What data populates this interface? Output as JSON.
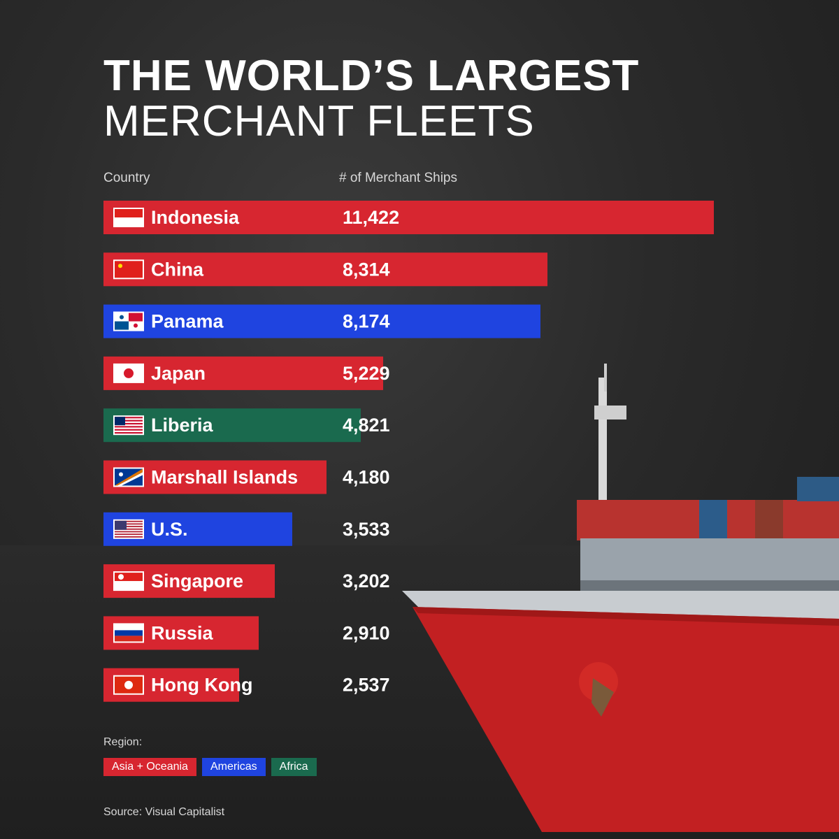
{
  "title_line1": "THE WORLD’S LARGEST",
  "title_line2": "MERCHANT FLEETS",
  "colors": {
    "Asia + Oceania": "#d72630",
    "Americas": "#1f44e0",
    "Africa": "#1a6a4e"
  },
  "legend": {
    "title": "Region:",
    "items": [
      {
        "label": "Asia + Oceania",
        "color": "#d72630"
      },
      {
        "label": "Americas",
        "color": "#1f44e0"
      },
      {
        "label": "Africa",
        "color": "#1a6a4e"
      }
    ]
  },
  "source": "Source: Visual Capitalist",
  "chart_data": {
    "type": "bar",
    "orientation": "horizontal",
    "column_headers": {
      "country": "Country",
      "value": "# of Merchant Ships"
    },
    "categories": [
      "Indonesia",
      "China",
      "Panama",
      "Japan",
      "Liberia",
      "Marshall Islands",
      "U.S.",
      "Singapore",
      "Russia",
      "Hong Kong"
    ],
    "values": [
      11422,
      8314,
      8174,
      5229,
      4821,
      4180,
      3533,
      3202,
      2910,
      2537
    ],
    "value_labels": [
      "11,422",
      "8,314",
      "8,174",
      "5,229",
      "4,821",
      "4,180",
      "3,533",
      "3,202",
      "2,910",
      "2,537"
    ],
    "regions": [
      "Asia + Oceania",
      "Asia + Oceania",
      "Americas",
      "Asia + Oceania",
      "Africa",
      "Asia + Oceania",
      "Americas",
      "Asia + Oceania",
      "Asia + Oceania",
      "Asia + Oceania"
    ],
    "flag_icons": [
      "flag-indonesia-icon",
      "flag-china-icon",
      "flag-panama-icon",
      "flag-japan-icon",
      "flag-liberia-icon",
      "flag-marshall-islands-icon",
      "flag-us-icon",
      "flag-singapore-icon",
      "flag-russia-icon",
      "flag-hong-kong-icon"
    ]
  }
}
